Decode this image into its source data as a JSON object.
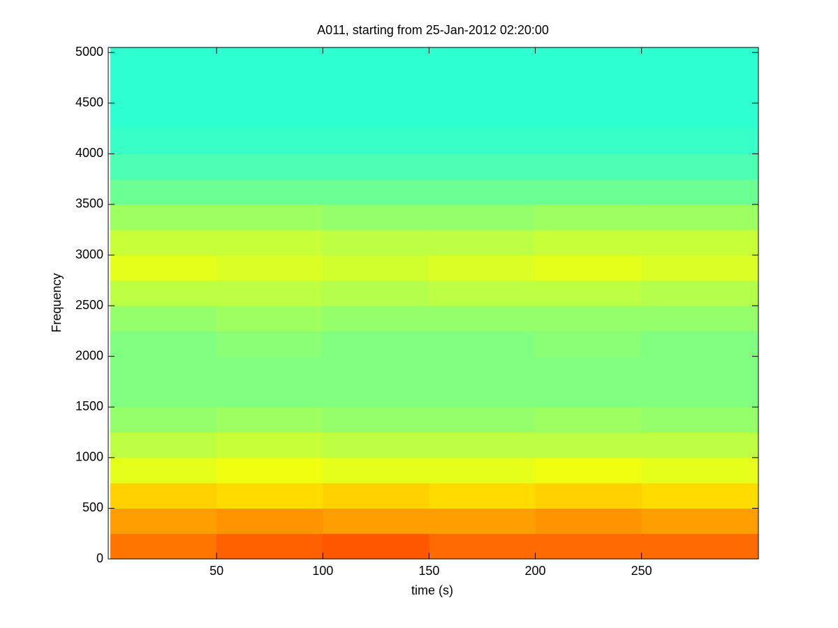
{
  "chart_data": {
    "type": "spectrogram",
    "title": "A011, starting from 25-Jan-2012 02:20:00",
    "xlabel": "time (s)",
    "ylabel": "Frequency",
    "colormap": "jet",
    "x": [
      0,
      50,
      100,
      150,
      200,
      250,
      305
    ],
    "y": [
      0,
      250,
      500,
      750,
      1000,
      1250,
      1500,
      1750,
      2000,
      2250,
      2500,
      2750,
      3000,
      3250,
      3500,
      3750,
      4000,
      4250,
      4500,
      4750,
      5050
    ],
    "values": [
      [
        0.76,
        0.78,
        0.79,
        0.77,
        0.77,
        0.77
      ],
      [
        0.72,
        0.73,
        0.72,
        0.72,
        0.73,
        0.72
      ],
      [
        0.67,
        0.66,
        0.67,
        0.66,
        0.67,
        0.66
      ],
      [
        0.6,
        0.61,
        0.6,
        0.6,
        0.61,
        0.6
      ],
      [
        0.56,
        0.57,
        0.56,
        0.56,
        0.56,
        0.56
      ],
      [
        0.52,
        0.53,
        0.52,
        0.52,
        0.53,
        0.52
      ],
      [
        0.5,
        0.5,
        0.5,
        0.5,
        0.5,
        0.5
      ],
      [
        0.5,
        0.5,
        0.5,
        0.5,
        0.5,
        0.5
      ],
      [
        0.5,
        0.51,
        0.5,
        0.5,
        0.51,
        0.5
      ],
      [
        0.52,
        0.53,
        0.52,
        0.52,
        0.52,
        0.52
      ],
      [
        0.56,
        0.56,
        0.55,
        0.56,
        0.56,
        0.55
      ],
      [
        0.6,
        0.59,
        0.58,
        0.59,
        0.6,
        0.59
      ],
      [
        0.57,
        0.57,
        0.56,
        0.56,
        0.57,
        0.57
      ],
      [
        0.53,
        0.53,
        0.52,
        0.52,
        0.53,
        0.53
      ],
      [
        0.48,
        0.48,
        0.48,
        0.48,
        0.48,
        0.48
      ],
      [
        0.45,
        0.45,
        0.45,
        0.45,
        0.45,
        0.45
      ],
      [
        0.43,
        0.43,
        0.43,
        0.43,
        0.43,
        0.43
      ],
      [
        0.42,
        0.42,
        0.42,
        0.42,
        0.42,
        0.42
      ],
      [
        0.42,
        0.42,
        0.42,
        0.42,
        0.42,
        0.42
      ],
      [
        0.42,
        0.42,
        0.42,
        0.42,
        0.42,
        0.42
      ]
    ],
    "xlim": [
      0,
      305
    ],
    "ylim": [
      0,
      5050
    ],
    "xticks": [
      50,
      100,
      150,
      200,
      250
    ],
    "yticks": [
      0,
      500,
      1000,
      1500,
      2000,
      2500,
      3000,
      3500,
      4000,
      4500,
      5000
    ]
  }
}
